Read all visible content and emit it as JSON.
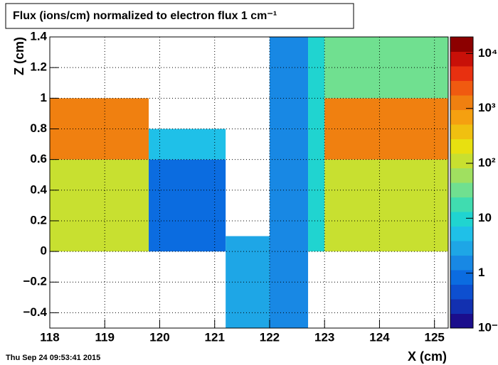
{
  "chart_data": {
    "type": "heatmap",
    "title": "Flux (ions/cm) normalized to electron flux 1 cm⁻¹",
    "x_label": "X (cm)",
    "y_label": "Z (cm)",
    "footer": "Thu Sep 24 09:53:41 2015",
    "xlim": [
      118,
      125.25
    ],
    "xticks": [
      118,
      119,
      120,
      121,
      122,
      123,
      124,
      125
    ],
    "ylim": [
      -0.5,
      1.4
    ],
    "yticks": [
      {
        "value": -0.4,
        "label": "−0.4"
      },
      {
        "value": -0.2,
        "label": "−0.2"
      },
      0,
      0.2,
      0.4,
      0.6,
      0.8,
      1,
      1.2,
      1.4
    ],
    "zlim": [
      0.1,
      20000
    ],
    "log_z": true,
    "zticks": [
      {
        "value": 0.1,
        "label": "10⁻¹"
      },
      1,
      10,
      {
        "value": 100,
        "label": "10²"
      },
      {
        "value": 1000,
        "label": "10³"
      },
      {
        "value": 10000,
        "label": "10⁴"
      }
    ],
    "palette": [
      "#1b0e8c",
      "#1230b0",
      "#0d4fd0",
      "#0b6ce0",
      "#1888e4",
      "#1ea6e6",
      "#1fc0e8",
      "#20d4d0",
      "#40dcb0",
      "#70e090",
      "#a0e060",
      "#c8e030",
      "#e8e010",
      "#f0c010",
      "#f5a010",
      "#f08010",
      "#f05a10",
      "#e83010",
      "#c81008",
      "#8c0000"
    ],
    "cells": [
      {
        "x": [
          118,
          119.8
        ],
        "y": [
          0,
          0.6
        ],
        "value": 120
      },
      {
        "x": [
          118,
          119.8
        ],
        "y": [
          0.6,
          1
        ],
        "value": 1000
      },
      {
        "x": [
          119.8,
          121.2
        ],
        "y": [
          0,
          0.6
        ],
        "value": 0.7
      },
      {
        "x": [
          119.8,
          121.2
        ],
        "y": [
          0.6,
          0.8
        ],
        "value": 5
      },
      {
        "x": [
          121.2,
          122
        ],
        "y": [
          -0.5,
          0.1
        ],
        "value": 3
      },
      {
        "x": [
          122,
          122.7
        ],
        "y": [
          -0.5,
          1.4
        ],
        "value": 2
      },
      {
        "x": [
          122.7,
          123
        ],
        "y": [
          0,
          1.4
        ],
        "value": 10
      },
      {
        "x": [
          123,
          125.25
        ],
        "y": [
          0,
          0.6
        ],
        "value": 120
      },
      {
        "x": [
          123,
          125.25
        ],
        "y": [
          0.6,
          1
        ],
        "value": 1000
      },
      {
        "x": [
          123,
          125.25
        ],
        "y": [
          1,
          1.4
        ],
        "value": 30
      }
    ],
    "grid": true
  }
}
